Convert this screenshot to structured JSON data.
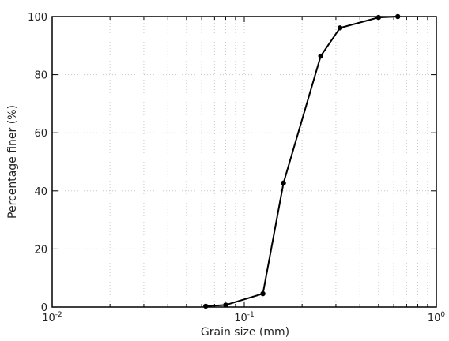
{
  "chart_data": {
    "type": "line",
    "title": "",
    "xlabel": "Grain size (mm)",
    "ylabel": "Percentage finer (%)",
    "x_scale": "log",
    "xlim": [
      0.01,
      1
    ],
    "ylim": [
      0,
      100
    ],
    "grid": true,
    "x_tick_labels": [
      {
        "value": 0.01,
        "base": "10",
        "exp": "-2"
      },
      {
        "value": 0.1,
        "base": "10",
        "exp": "-1"
      },
      {
        "value": 1,
        "base": "10",
        "exp": "0"
      }
    ],
    "y_ticks": [
      0,
      20,
      40,
      60,
      80,
      100
    ],
    "y_tick_labels": [
      "0",
      "20",
      "40",
      "60",
      "80",
      "100"
    ],
    "series": [
      {
        "color": "#000000",
        "marker": "circle",
        "x": [
          0.063,
          0.08,
          0.125,
          0.16,
          0.25,
          0.315,
          0.5,
          0.63
        ],
        "y": [
          0.3,
          0.7,
          4.6,
          42.7,
          86.4,
          96.1,
          99.7,
          100
        ]
      }
    ]
  }
}
